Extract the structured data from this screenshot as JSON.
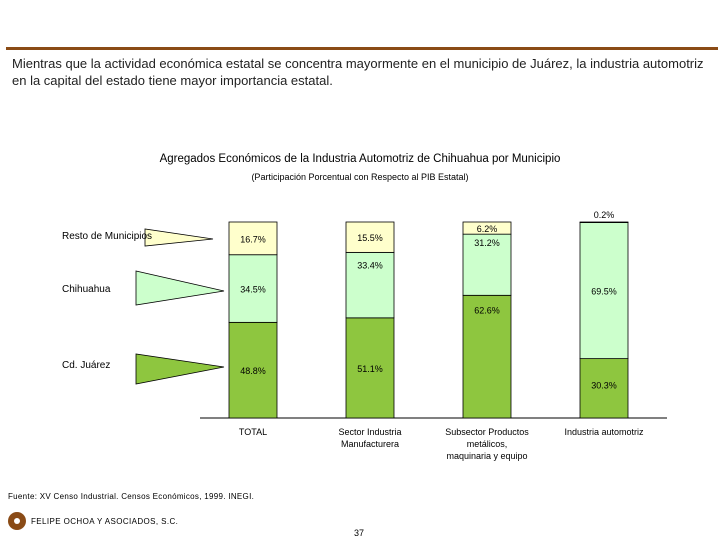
{
  "intro_text": "Mientras que la actividad económica estatal se concentra mayormente en  el municipio de Juárez, la industria automotriz en la capital del estado tiene mayor importancia estatal.",
  "chart_data": {
    "type": "bar",
    "stacked": true,
    "title": "Agregados Económicos de la Industria Automotriz de Chihuahua por Municipio",
    "subtitle": "(Participación Porcentual con Respecto al PIB Estatal)",
    "categories": [
      "TOTAL",
      "Sector Industria Manufacturera",
      "Subsector Productos metálicos, maquinaria y equipo",
      "Industria automotriz"
    ],
    "category_lines": [
      [
        "TOTAL"
      ],
      [
        "Sector Industria",
        "Manufacturera"
      ],
      [
        "Subsector Productos",
        "metálicos,",
        "maquinaria y equipo"
      ],
      [
        "Industria automotriz"
      ]
    ],
    "ylim": [
      0,
      100
    ],
    "series": [
      {
        "name": "Cd. Juárez",
        "values": [
          48.8,
          51.1,
          62.6,
          30.3
        ],
        "labels": [
          "48.8%",
          "51.1%",
          "62.6%",
          "30.3%"
        ],
        "color": "#8ec63f"
      },
      {
        "name": "Chihuahua",
        "values": [
          34.5,
          33.4,
          31.2,
          69.5
        ],
        "labels": [
          "34.5%",
          "33.4%",
          "31.2%",
          "69.5%"
        ],
        "color": "#ccffcc"
      },
      {
        "name": "Resto de Municipios",
        "values": [
          16.7,
          15.5,
          6.2,
          0.2
        ],
        "labels": [
          "16.7%",
          "15.5%",
          "6.2%",
          "0.2%"
        ],
        "color": "#ffffcc"
      }
    ]
  },
  "source_text": "Fuente: XV Censo Industrial. Censos Económicos, 1999. INEGI.",
  "firm_name": "FELIPE OCHOA Y ASOCIADOS, S.C.",
  "page_number": "37"
}
